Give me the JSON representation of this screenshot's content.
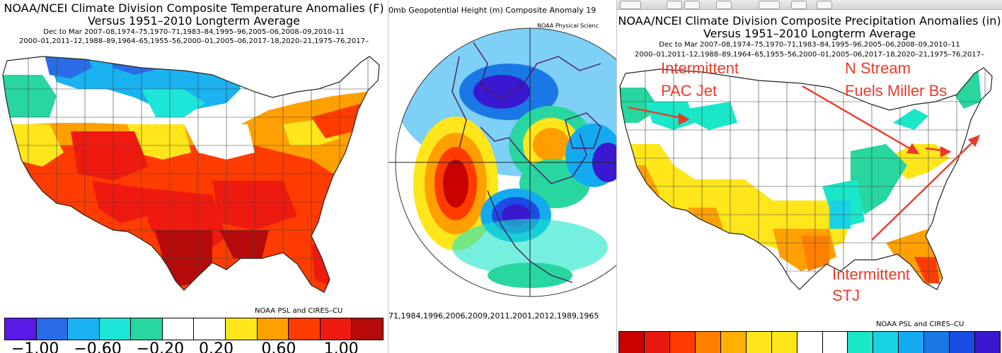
{
  "left_panel": {
    "title_line1": "NOAA/NCEI Climate Division Composite Temperature Anomalies (F)",
    "title_line2": "Versus 1951–2010 Longterm Average",
    "sub_line1": "Dec to Mar  2007–08,1974–75,1970–71,1983–84,1995–96,2005–06,2008–09,2010–11",
    "sub_line2": "2000–01,2011–12,1988–89,1964–65,1955–56,2000–01,2005–06,2017–18,2020–21,1975–76,2017–",
    "credit": "NOAA PSL and CIRES–CU",
    "legend_colors": [
      "#5a19e6",
      "#2a6ce8",
      "#1ab2f0",
      "#1de6d8",
      "#28d6a0",
      "#ffffff",
      "#ffffff",
      "#ffe61a",
      "#ffa000",
      "#ff3c00",
      "#ee1a10",
      "#b40a0a"
    ],
    "legend_ticks": [
      "−1.00",
      "−0.60",
      "−0.20",
      "0.20",
      "0.60",
      "1.00"
    ]
  },
  "middle_panel": {
    "title": "0mb Geopotential Height (m) Composite Anomaly 19",
    "credit": "NOAA Physical Scienc",
    "footer_years": "71,1984,1996,2006,2009,2011,2001,2012,1989,1965"
  },
  "right_panel": {
    "title_line1": "NOAA/NCEI Climate Division Composite Precipitation Anomalies (in)",
    "title_line2": "Versus 1951–2010 Longterm Average",
    "sub_line1": "Dec to Mar  2007–08,1974–75,1970–71,1983–84,1995–96,2005–06,2008–09,2010–11",
    "sub_line2": "2000–01,2011–12,1988–89,1964–65,1955–56,2000–01,2005–06,2017–18,2020–21,1975–76,2017–",
    "credit": "NOAA PSL and CIRES–CU",
    "legend_colors": [
      "#c80000",
      "#e61a10",
      "#ff3c00",
      "#ff8000",
      "#ffb000",
      "#ffe61a",
      "#ffe61a",
      "#ffffff",
      "#ffffff",
      "#1ae6c8",
      "#1ad2e6",
      "#14aaf0",
      "#1a78e6",
      "#1a4ce6",
      "#3a18d0"
    ],
    "annotations": {
      "pac_jet_line1": "Intermittent",
      "pac_jet_line2": "PAC Jet",
      "n_stream_line1": "N Stream",
      "n_stream_line2": "Fuels Miller Bs",
      "stj_line1": "Intermittent",
      "stj_line2": "STJ"
    },
    "annotation_color": "#ea3b2b"
  }
}
